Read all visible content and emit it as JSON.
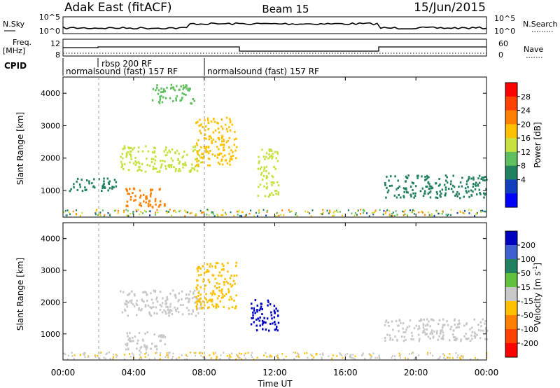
{
  "header": {
    "title": "Adak East (fitACF)",
    "beam": "Beam 15",
    "date": "15/Jun/2015"
  },
  "top_panel": {
    "left_label": "N.Sky",
    "left_ticks": [
      "10^5",
      "10^0"
    ],
    "right_ticks": [
      "10^5",
      "10^0"
    ],
    "right_label": "N.Search"
  },
  "freq_panel": {
    "left_label_1": "Freq.",
    "left_label_2": "[MHz]",
    "left_ticks": [
      "12",
      "8"
    ],
    "right_ticks": [
      "60",
      "0"
    ],
    "right_label": "Nave"
  },
  "cpid_panel": {
    "label": "CPID",
    "segments": [
      "normalsound (fast) 157 RF",
      "rbsp 200 RF",
      "normalsound (fast) 157 RF"
    ]
  },
  "axes": {
    "xlabel": "Time UT",
    "ylabel_left": "Slant Range [km]",
    "x_ticks": [
      "00:00",
      "04:00",
      "08:00",
      "12:00",
      "16:00",
      "20:00",
      "00:00"
    ],
    "y_ticks": [
      "1000",
      "2000",
      "3000",
      "4000"
    ]
  },
  "colorbars": {
    "power": {
      "label": "Power [dB]",
      "ticks": [
        "28",
        "24",
        "20",
        "16",
        "12",
        "8",
        "4"
      ],
      "colors": [
        "#ff0000",
        "#ff4000",
        "#ff8000",
        "#ffc000",
        "#c8e040",
        "#60c060",
        "#208060",
        "#1040c0",
        "#0000ff"
      ]
    },
    "velocity": {
      "label": "Velocity [m s",
      "label_sup": "-1",
      "label_end": "]",
      "ticks": [
        "200",
        "100",
        "50",
        "15",
        "-15",
        "-50",
        "-100",
        "-200"
      ],
      "colors": [
        "#0000c0",
        "#4060d0",
        "#208060",
        "#60c040",
        "#c8c8c8",
        "#ffc000",
        "#ff8000",
        "#ff4000",
        "#ff0000"
      ]
    }
  },
  "chart_data": [
    {
      "type": "heatmap",
      "title": "Power",
      "colorbar_label": "Power [dB]",
      "x_range_hours": [
        0,
        24
      ],
      "y_range_km": [
        180,
        4500
      ],
      "regions": [
        {
          "t0": 3.2,
          "t1": 7.8,
          "r0": 1600,
          "r1": 2400,
          "value": 14
        },
        {
          "t0": 7.5,
          "t1": 9.8,
          "r0": 1800,
          "r1": 3300,
          "value": 20
        },
        {
          "t0": 11.0,
          "t1": 12.2,
          "r0": 800,
          "r1": 2300,
          "value": 16
        },
        {
          "t0": 3.5,
          "t1": 5.8,
          "r0": 500,
          "r1": 1100,
          "value": 22
        },
        {
          "t0": 0.3,
          "t1": 3.0,
          "r0": 1000,
          "r1": 1400,
          "value": 6
        },
        {
          "t0": 18.2,
          "t1": 24.0,
          "r0": 800,
          "r1": 1500,
          "value": 6
        },
        {
          "t0": 5.0,
          "t1": 7.5,
          "r0": 3700,
          "r1": 4300,
          "value": 10
        }
      ]
    },
    {
      "type": "heatmap",
      "title": "Velocity",
      "colorbar_label": "Velocity [m s-1]",
      "x_range_hours": [
        0,
        24
      ],
      "y_range_km": [
        180,
        4500
      ],
      "regions": [
        {
          "t0": 3.2,
          "t1": 7.8,
          "r0": 1600,
          "r1": 2400,
          "value": 0
        },
        {
          "t0": 7.5,
          "t1": 9.8,
          "r0": 1800,
          "r1": 3300,
          "value": -40
        },
        {
          "t0": 10.6,
          "t1": 12.2,
          "r0": 1100,
          "r1": 2100,
          "value": 200
        },
        {
          "t0": 3.5,
          "t1": 5.8,
          "r0": 500,
          "r1": 1100,
          "value": 0
        },
        {
          "t0": 18.2,
          "t1": 24.0,
          "r0": 800,
          "r1": 1500,
          "value": 0
        }
      ]
    }
  ]
}
